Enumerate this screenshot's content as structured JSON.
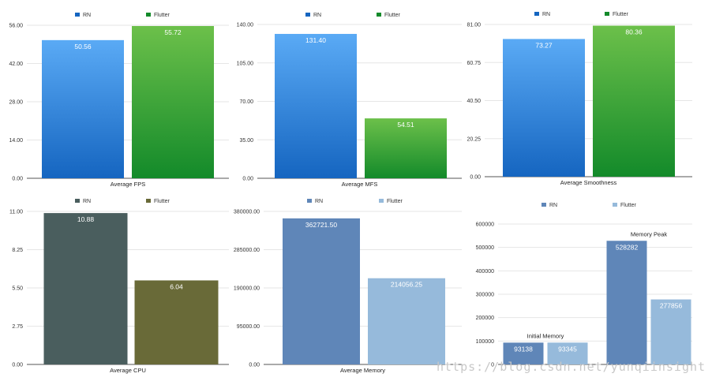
{
  "colors": {
    "rn_blue_top": "#5aaaf5",
    "rn_blue_bottom": "#1565c0",
    "flutter_green_top": "#6cc04a",
    "flutter_green_bottom": "#138a2a",
    "rn_slate": "#4a5e5e",
    "flutter_olive": "#696a38",
    "rn_steel": "#5f86b8",
    "flutter_sky": "#96badb",
    "grid": "#e6e6e6",
    "axis": "#555555"
  },
  "watermark": "https://blog.csdn.net/yunqiinsight",
  "chart_data": [
    {
      "type": "bar",
      "title": "",
      "xlabel": "Average FPS",
      "ylabel": "",
      "ylim": [
        0,
        56
      ],
      "yticks": [
        "56.00",
        "42.00",
        "28.00",
        "14.00",
        "0.00"
      ],
      "grid": true,
      "legend": "top",
      "style": "gradient",
      "series": [
        {
          "name": "RN",
          "values": [
            50.56
          ],
          "labels": [
            "50.56"
          ],
          "color_top": "#5aaaf5",
          "color_bottom": "#1565c0"
        },
        {
          "name": "Flutter",
          "values": [
            55.72
          ],
          "labels": [
            "55.72"
          ],
          "color_top": "#6cc04a",
          "color_bottom": "#138a2a"
        }
      ]
    },
    {
      "type": "bar",
      "title": "",
      "xlabel": "Average MFS",
      "ylabel": "",
      "ylim": [
        0,
        140
      ],
      "yticks": [
        "140.00",
        "105.00",
        "70.00",
        "35.00",
        "0.00"
      ],
      "grid": true,
      "legend": "top",
      "style": "gradient",
      "series": [
        {
          "name": "RN",
          "values": [
            131.4
          ],
          "labels": [
            "131.40"
          ],
          "color_top": "#5aaaf5",
          "color_bottom": "#1565c0"
        },
        {
          "name": "Flutter",
          "values": [
            54.51
          ],
          "labels": [
            "54.51"
          ],
          "color_top": "#6cc04a",
          "color_bottom": "#138a2a"
        }
      ]
    },
    {
      "type": "bar",
      "title": "",
      "xlabel": "Average Smoothness",
      "ylabel": "",
      "ylim": [
        0,
        81
      ],
      "yticks": [
        "81.00",
        "60.75",
        "40.50",
        "20.25",
        "0.00"
      ],
      "grid": true,
      "legend": "top",
      "style": "gradient",
      "series": [
        {
          "name": "RN",
          "values": [
            73.27
          ],
          "labels": [
            "73.27"
          ],
          "color_top": "#5aaaf5",
          "color_bottom": "#1565c0"
        },
        {
          "name": "Flutter",
          "values": [
            80.36
          ],
          "labels": [
            "80.36"
          ],
          "color_top": "#6cc04a",
          "color_bottom": "#138a2a"
        }
      ]
    },
    {
      "type": "bar",
      "title": "",
      "xlabel": "Average CPU",
      "ylabel": "",
      "ylim": [
        0,
        11
      ],
      "yticks": [
        "11.00",
        "8.25",
        "5.50",
        "2.75",
        "0.00"
      ],
      "grid": true,
      "legend": "top",
      "style": "flat",
      "series": [
        {
          "name": "RN",
          "values": [
            10.88
          ],
          "labels": [
            "10.88"
          ],
          "color_top": "#4a5e5e",
          "color_bottom": "#4a5e5e"
        },
        {
          "name": "Flutter",
          "values": [
            6.04
          ],
          "labels": [
            "6.04"
          ],
          "color_top": "#696a38",
          "color_bottom": "#696a38"
        }
      ]
    },
    {
      "type": "bar",
      "title": "",
      "xlabel": "Average Memory",
      "ylabel": "",
      "ylim": [
        0,
        380000
      ],
      "yticks": [
        "380000.00",
        "285000.00",
        "190000.00",
        "95000.00",
        "0.00"
      ],
      "grid": true,
      "legend": "top",
      "style": "flat",
      "series": [
        {
          "name": "RN",
          "values": [
            362721.5
          ],
          "labels": [
            "362721.50"
          ],
          "color_top": "#5f86b8",
          "color_bottom": "#5f86b8"
        },
        {
          "name": "Flutter",
          "values": [
            214056.25
          ],
          "labels": [
            "214056.25"
          ],
          "color_top": "#96badb",
          "color_bottom": "#96badb"
        }
      ]
    },
    {
      "type": "bar",
      "title": "",
      "xlabel": "",
      "ylabel": "",
      "ylim": [
        0,
        600000
      ],
      "yticks": [
        "600000",
        "500000",
        "400000",
        "300000",
        "200000",
        "100000",
        "0"
      ],
      "grid": true,
      "legend": "top",
      "style": "flat",
      "categories": [
        "Initial Memory",
        "Memory Peak"
      ],
      "series": [
        {
          "name": "RN",
          "values": [
            93138,
            528282
          ],
          "labels": [
            "93138",
            "528282"
          ],
          "color_top": "#5f86b8",
          "color_bottom": "#5f86b8"
        },
        {
          "name": "Flutter",
          "values": [
            93345,
            277856
          ],
          "labels": [
            "93345",
            "277856"
          ],
          "color_top": "#96badb",
          "color_bottom": "#96badb"
        }
      ]
    }
  ]
}
